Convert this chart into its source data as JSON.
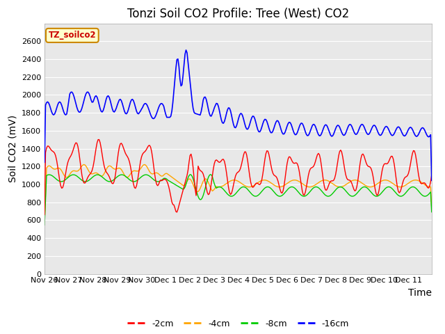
{
  "title": "Tonzi Soil CO2 Profile: Tree (West) CO2",
  "ylabel": "Soil CO2 (mV)",
  "xlabel": "Time",
  "box_label": "TZ_soilco2",
  "legend_labels": [
    "-2cm",
    "-4cm",
    "-8cm",
    "-16cm"
  ],
  "legend_colors": [
    "#ff0000",
    "#ffa500",
    "#00cc00",
    "#0000ff"
  ],
  "ylim": [
    0,
    2800
  ],
  "yticks": [
    0,
    200,
    400,
    600,
    800,
    1000,
    1200,
    1400,
    1600,
    1800,
    2000,
    2200,
    2400,
    2600
  ],
  "plot_bg_color": "#e8e8e8",
  "title_fontsize": 12,
  "axis_label_fontsize": 10,
  "tick_fontsize": 8,
  "line_colors": [
    "#ff0000",
    "#ffa500",
    "#00cc00",
    "#0000ff"
  ],
  "xtick_labels": [
    "Nov 26",
    "Nov 27",
    "Nov 28",
    "Nov 29",
    "Nov 30",
    "Dec 1",
    "Dec 2",
    "Dec 3",
    "Dec 4",
    "Dec 5",
    "Dec 6",
    "Dec 7",
    "Dec 8",
    "Dec 9",
    "Dec 10",
    "Dec 11"
  ]
}
